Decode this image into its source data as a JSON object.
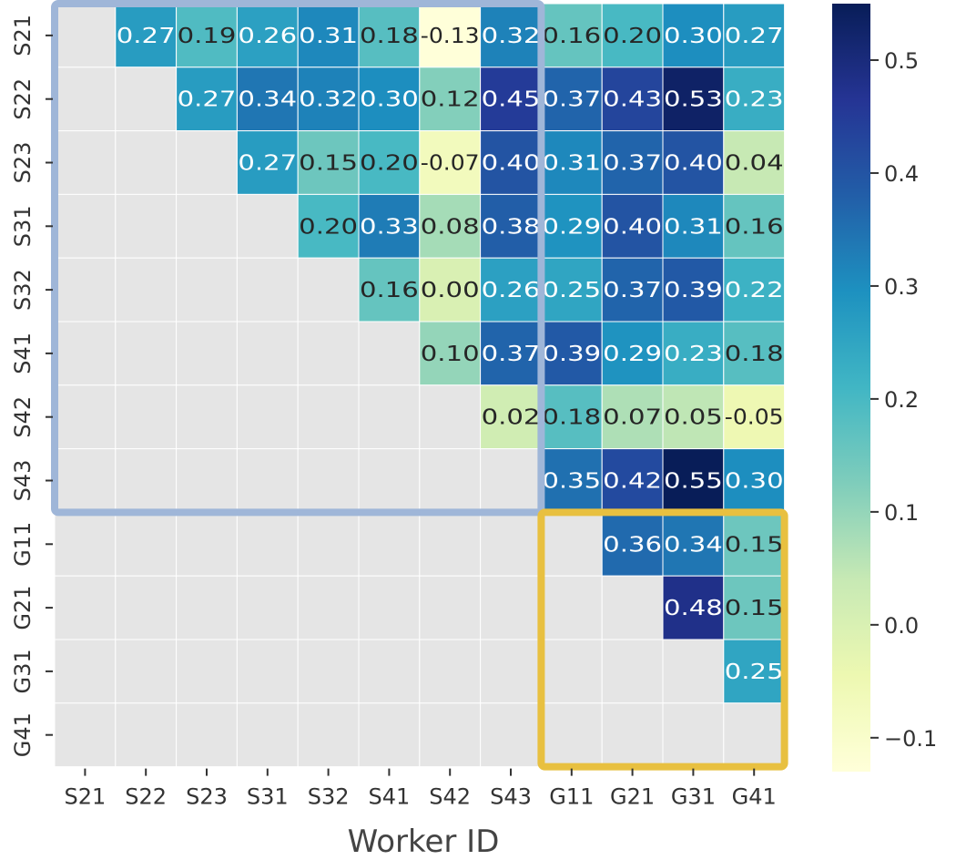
{
  "chart_data": {
    "type": "heatmap",
    "title": "",
    "xlabel": "Worker ID",
    "ylabel": "",
    "rows": [
      "S21",
      "S22",
      "S23",
      "S31",
      "S32",
      "S41",
      "S42",
      "S43",
      "G11",
      "G21",
      "G31",
      "G41"
    ],
    "columns": [
      "S21",
      "S22",
      "S23",
      "S31",
      "S32",
      "S41",
      "S42",
      "S43",
      "G11",
      "G21",
      "G31",
      "G41"
    ],
    "values": [
      [
        null,
        "0.27",
        "0.19",
        "0.26",
        "0.31",
        "0.18",
        "-0.13",
        "0.32",
        "0.16",
        "0.20",
        "0.30",
        "0.27"
      ],
      [
        null,
        null,
        "0.27",
        "0.34",
        "0.32",
        "0.30",
        "0.12",
        "0.45",
        "0.37",
        "0.43",
        "0.53",
        "0.23"
      ],
      [
        null,
        null,
        null,
        "0.27",
        "0.15",
        "0.20",
        "-0.07",
        "0.40",
        "0.31",
        "0.37",
        "0.40",
        "0.04"
      ],
      [
        null,
        null,
        null,
        null,
        "0.20",
        "0.33",
        "0.08",
        "0.38",
        "0.29",
        "0.40",
        "0.31",
        "0.16"
      ],
      [
        null,
        null,
        null,
        null,
        null,
        "0.16",
        "0.00",
        "0.26",
        "0.25",
        "0.37",
        "0.39",
        "0.22"
      ],
      [
        null,
        null,
        null,
        null,
        null,
        null,
        "0.10",
        "0.37",
        "0.39",
        "0.29",
        "0.23",
        "0.18"
      ],
      [
        null,
        null,
        null,
        null,
        null,
        null,
        null,
        "0.02",
        "0.18",
        "0.07",
        "0.05",
        "-0.05"
      ],
      [
        null,
        null,
        null,
        null,
        null,
        null,
        null,
        null,
        "0.35",
        "0.42",
        "0.55",
        "0.30"
      ],
      [
        null,
        null,
        null,
        null,
        null,
        null,
        null,
        null,
        null,
        "0.36",
        "0.34",
        "0.15"
      ],
      [
        null,
        null,
        null,
        null,
        null,
        null,
        null,
        null,
        null,
        null,
        "0.48",
        "0.15"
      ],
      [
        null,
        null,
        null,
        null,
        null,
        null,
        null,
        null,
        null,
        null,
        null,
        "0.25"
      ],
      [
        null,
        null,
        null,
        null,
        null,
        null,
        null,
        null,
        null,
        null,
        null,
        null
      ]
    ],
    "colorscale": "YlGnBu",
    "color_range": [
      -0.13,
      0.55
    ],
    "missing_color": "#e5e5e5",
    "colorbar_ticks": [
      "0.5",
      "0.4",
      "0.3",
      "0.2",
      "0.1",
      "0.0",
      "−0.1"
    ],
    "colorbar_tick_values": [
      0.5,
      0.4,
      0.3,
      0.2,
      0.1,
      0.0,
      -0.1
    ],
    "highlight_boxes": [
      {
        "group": "S",
        "rows": [
          "S21",
          "S43"
        ],
        "columns": [
          "S21",
          "S43"
        ],
        "color": "#9fb6d8"
      },
      {
        "group": "G",
        "rows": [
          "G11",
          "G41"
        ],
        "columns": [
          "G11",
          "G41"
        ],
        "color": "#e8c040"
      }
    ]
  }
}
